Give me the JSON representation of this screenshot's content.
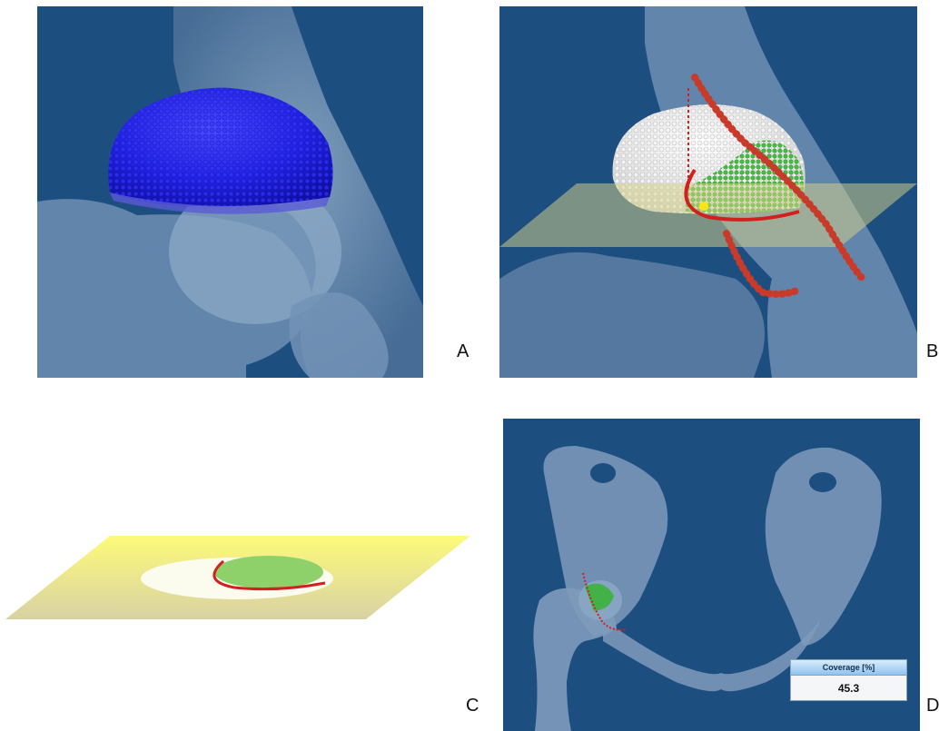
{
  "panels": [
    {
      "label": "A",
      "content": "hip-view-blue-acetabular-cap"
    },
    {
      "label": "B",
      "content": "hip-view-white-green-head-with-cutting-plane"
    },
    {
      "label": "C",
      "content": "yellow-plane-with-coverage-section"
    },
    {
      "label": "D",
      "content": "pelvis-anterior-view-with-coverage-readout"
    }
  ],
  "coverage_widget": {
    "title": "Coverage [%]",
    "value": "45.3"
  },
  "colors": {
    "background": "#1d4e80",
    "bone": "#7f9bbb",
    "acetabular_cap": "#1f1fe0",
    "covered_region": "#3bb33b",
    "rim_line": "#d41f1f",
    "plane": "#f7f07a"
  }
}
